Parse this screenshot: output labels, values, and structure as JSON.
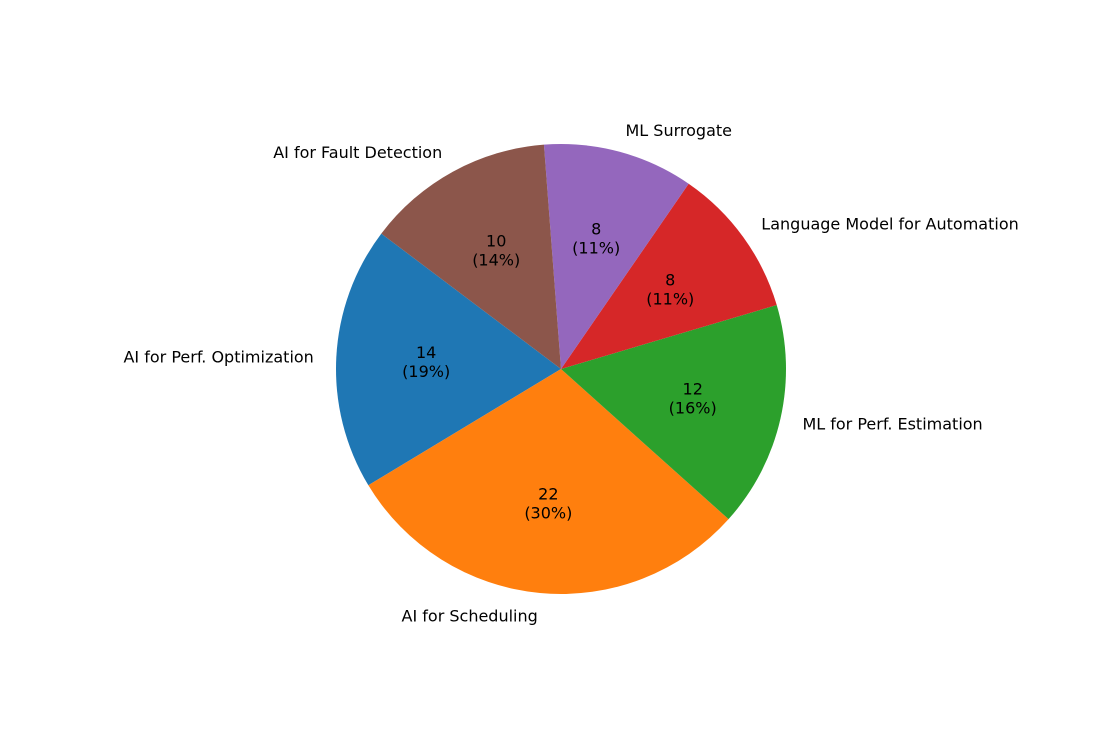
{
  "chart_data": {
    "type": "pie",
    "title": "",
    "start_angle_deg": 143,
    "direction": "counterclockwise",
    "slices": [
      {
        "label": "AI for Perf. Optimization",
        "value": 14,
        "pct_text": "(19%)",
        "color": "#1f77b4"
      },
      {
        "label": "AI for Scheduling",
        "value": 22,
        "pct_text": "(30%)",
        "color": "#ff7f0e"
      },
      {
        "label": "ML for Perf. Estimation",
        "value": 12,
        "pct_text": "(16%)",
        "color": "#2ca02c"
      },
      {
        "label": "Language Model for Automation",
        "value": 8,
        "pct_text": "(11%)",
        "color": "#d62728"
      },
      {
        "label": "ML Surrogate",
        "value": 8,
        "pct_text": "(11%)",
        "color": "#9467bd"
      },
      {
        "label": "AI for Fault Detection",
        "value": 10,
        "pct_text": "(14%)",
        "color": "#8c564b"
      }
    ]
  }
}
